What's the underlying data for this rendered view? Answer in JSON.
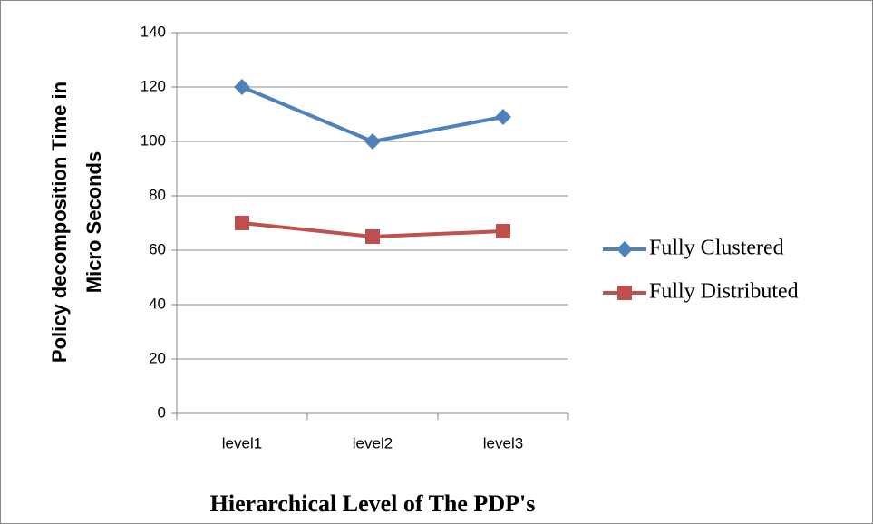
{
  "chart_data": {
    "type": "line",
    "xlabel": "Hierarchical Level of The PDP's",
    "ylabel": "Policy decomposition Time in Micro Seconds",
    "categories": [
      "level1",
      "level2",
      "level3"
    ],
    "series": [
      {
        "name": "Fully Clustered",
        "color": "#4f81bd",
        "marker": "diamond",
        "values": [
          120,
          100,
          109
        ]
      },
      {
        "name": "Fully Distributed",
        "color": "#c0504d",
        "marker": "square",
        "values": [
          70,
          65,
          67
        ]
      }
    ],
    "ylim": [
      0,
      140
    ],
    "yticks": [
      0,
      20,
      40,
      60,
      80,
      100,
      120,
      140
    ],
    "grid": true,
    "legend": "right"
  }
}
